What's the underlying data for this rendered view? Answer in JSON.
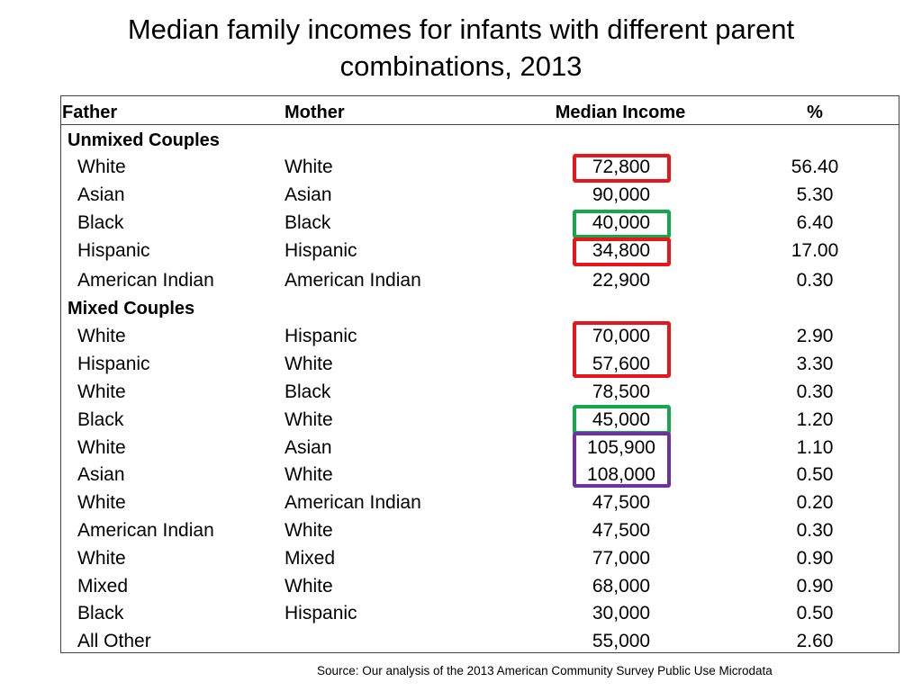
{
  "title": {
    "line1": "Median family incomes for infants with different parent",
    "line2": "combinations, 2013"
  },
  "headers": {
    "father": "Father",
    "mother": "Mother",
    "income": "Median Income",
    "pct": "%"
  },
  "sections": {
    "unmixed": "Unmixed Couples",
    "mixed": "Mixed Couples"
  },
  "rows": [
    {
      "father": "White",
      "mother": "White",
      "income": "72,800",
      "pct": "56.40"
    },
    {
      "father": "Asian",
      "mother": "Asian",
      "income": "90,000",
      "pct": "5.30"
    },
    {
      "father": "Black",
      "mother": "Black",
      "income": "40,000",
      "pct": "6.40"
    },
    {
      "father": "Hispanic",
      "mother": "Hispanic",
      "income": "34,800",
      "pct": "17.00"
    },
    {
      "father": "American Indian",
      "mother": "American Indian",
      "income": "22,900",
      "pct": "0.30"
    },
    {
      "father": "White",
      "mother": "Hispanic",
      "income": "70,000",
      "pct": "2.90"
    },
    {
      "father": "Hispanic",
      "mother": "White",
      "income": "57,600",
      "pct": "3.30"
    },
    {
      "father": "White",
      "mother": "Black",
      "income": "78,500",
      "pct": "0.30"
    },
    {
      "father": "Black",
      "mother": "White",
      "income": "45,000",
      "pct": "1.20"
    },
    {
      "father": "White",
      "mother": "Asian",
      "income": "105,900",
      "pct": "1.10"
    },
    {
      "father": "Asian",
      "mother": "White",
      "income": "108,000",
      "pct": "0.50"
    },
    {
      "father": "White",
      "mother": "American Indian",
      "income": "47,500",
      "pct": "0.20"
    },
    {
      "father": "American Indian",
      "mother": "White",
      "income": "47,500",
      "pct": "0.30"
    },
    {
      "father": "White",
      "mother": "Mixed",
      "income": "77,000",
      "pct": "0.90"
    },
    {
      "father": "Mixed",
      "mother": "White",
      "income": "68,000",
      "pct": "0.90"
    },
    {
      "father": "Black",
      "mother": "Hispanic",
      "income": "30,000",
      "pct": "0.50"
    },
    {
      "father": "All Other",
      "mother": "",
      "income": "55,000",
      "pct": "2.60"
    }
  ],
  "highlight_colors": {
    "red": "#e8151b",
    "green": "#14a84a",
    "purple": "#7030a0"
  },
  "source": "Source:  Our analysis of the 2013 American Community Survey Public Use Microdata"
}
